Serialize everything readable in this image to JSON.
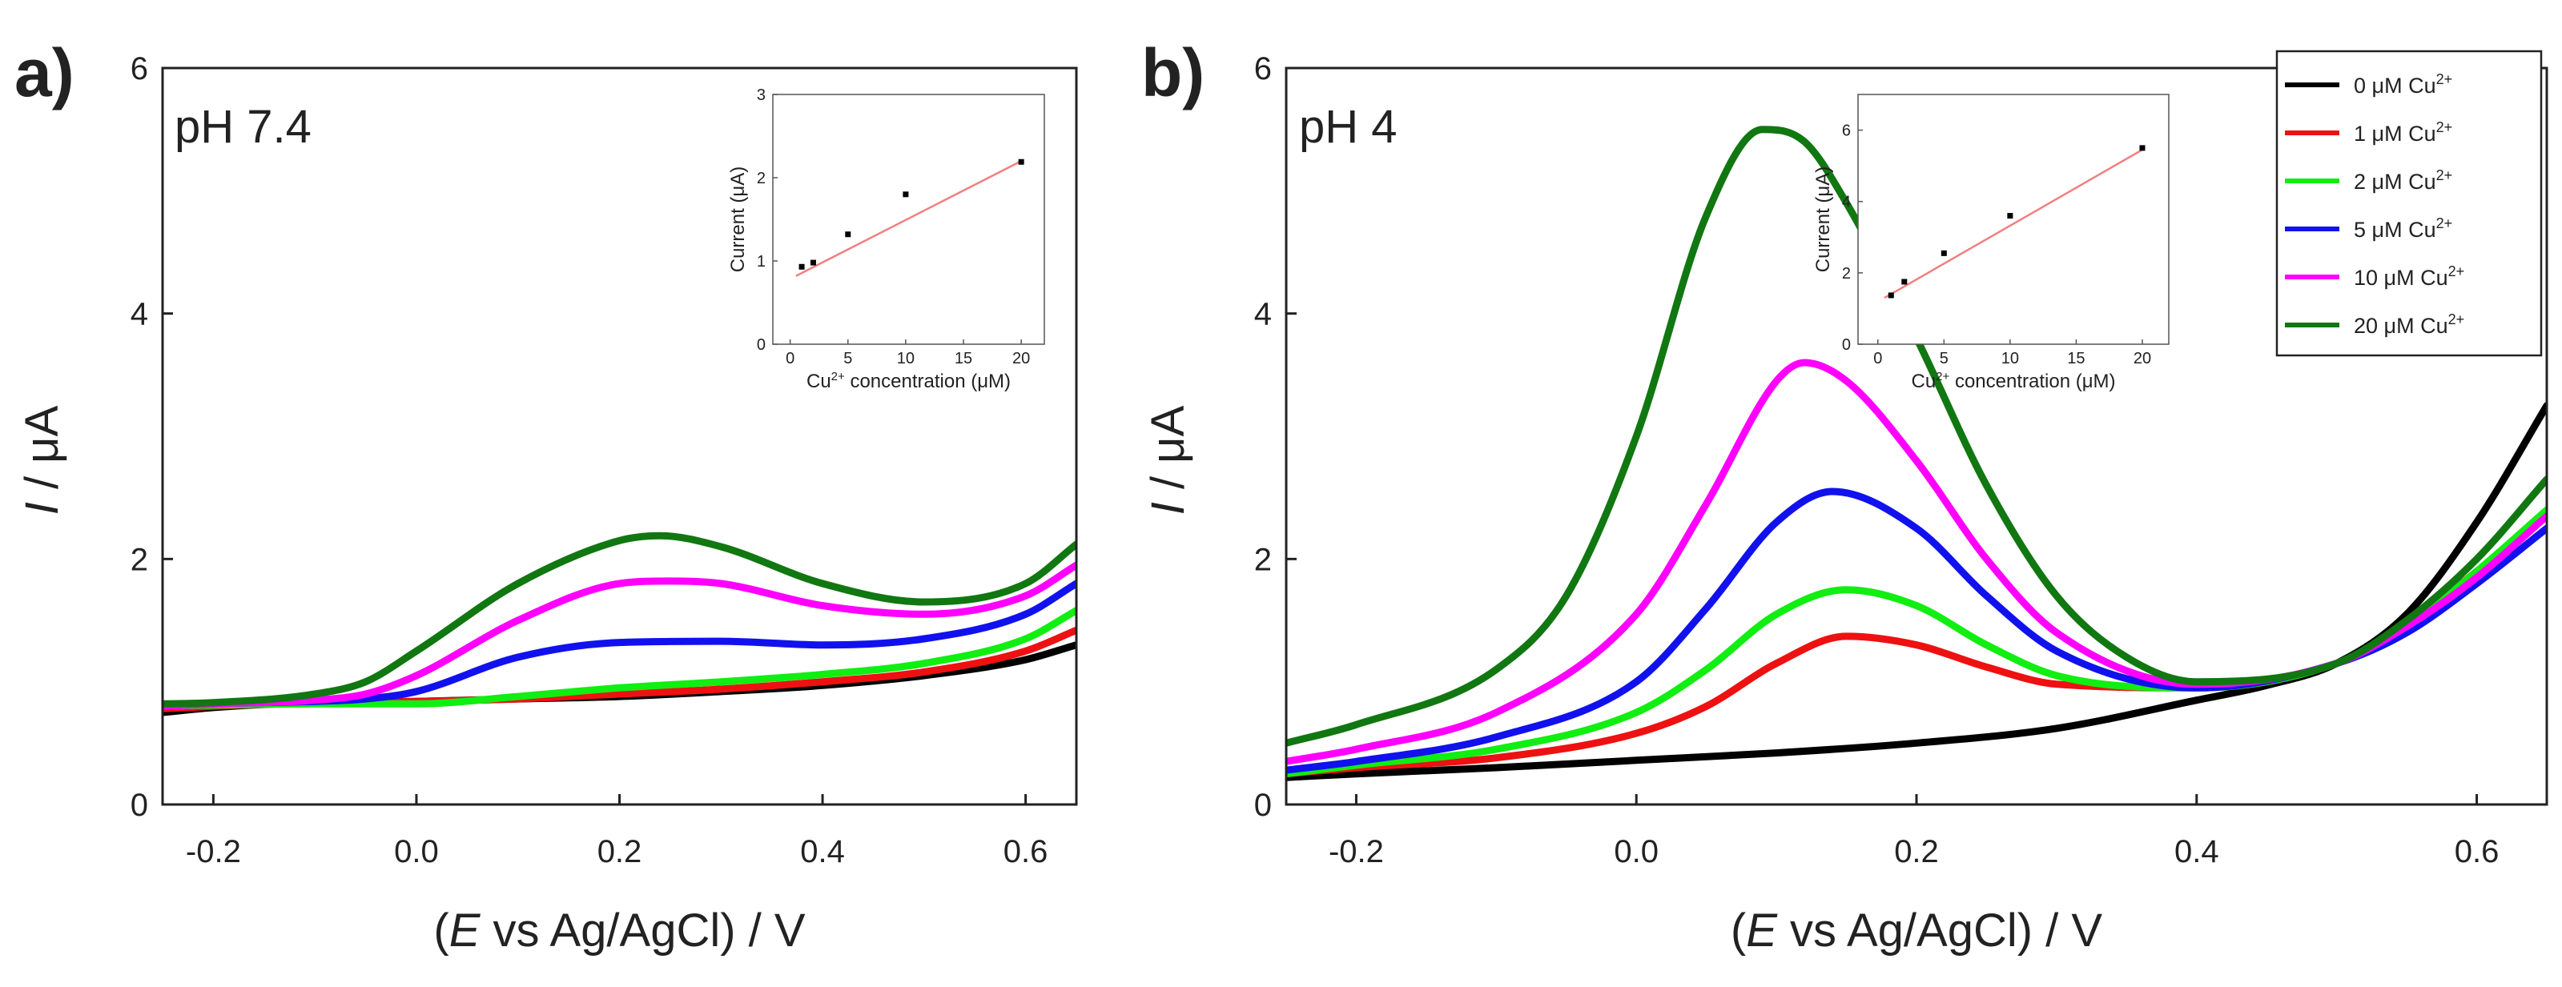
{
  "legend": {
    "items": [
      {
        "label": "0 μM Cu",
        "sup": "2+",
        "color": "#000000"
      },
      {
        "label": "1 μM Cu",
        "sup": "2+",
        "color": "#ee1111"
      },
      {
        "label": "2 μM Cu",
        "sup": "2+",
        "color": "#11ee11"
      },
      {
        "label": "5 μM Cu",
        "sup": "2+",
        "color": "#1111ee"
      },
      {
        "label": "10 μM Cu",
        "sup": "2+",
        "color": "#ff00ff"
      },
      {
        "label": "20 μM Cu",
        "sup": "2+",
        "color": "#117711"
      }
    ]
  },
  "chart_data": [
    {
      "id": "a",
      "panel_label": "a)",
      "type": "line",
      "condition": "pH 7.4",
      "xlabel": {
        "pre": "(",
        "italic": "E",
        "post": " vs Ag/AgCl) / V"
      },
      "ylabel": {
        "italic": "I",
        "post": " / μA"
      },
      "xlim": [
        -0.25,
        0.65
      ],
      "ylim": [
        0,
        6
      ],
      "xticks": [
        -0.2,
        0.0,
        0.2,
        0.4,
        0.6
      ],
      "xtick_labels": [
        "-0.2",
        "0.0",
        "0.2",
        "0.4",
        "0.6"
      ],
      "yticks": [
        0,
        2,
        4,
        6
      ],
      "ytick_labels": [
        "0",
        "2",
        "4",
        "6"
      ],
      "series": [
        {
          "name": "0 μM Cu2+",
          "color": "#000000",
          "x": [
            -0.25,
            -0.2,
            -0.1,
            0.0,
            0.1,
            0.2,
            0.3,
            0.4,
            0.5,
            0.6,
            0.65
          ],
          "y": [
            0.75,
            0.79,
            0.83,
            0.84,
            0.86,
            0.88,
            0.92,
            0.97,
            1.05,
            1.18,
            1.3
          ]
        },
        {
          "name": "1 μM Cu2+",
          "color": "#ee1111",
          "x": [
            -0.25,
            -0.2,
            -0.1,
            0.0,
            0.1,
            0.2,
            0.3,
            0.4,
            0.5,
            0.6,
            0.65
          ],
          "y": [
            0.78,
            0.8,
            0.83,
            0.84,
            0.86,
            0.9,
            0.94,
            1.0,
            1.08,
            1.25,
            1.42
          ]
        },
        {
          "name": "2 μM Cu2+",
          "color": "#11ee11",
          "x": [
            -0.25,
            -0.2,
            -0.1,
            0.0,
            0.1,
            0.2,
            0.3,
            0.4,
            0.5,
            0.6,
            0.65
          ],
          "y": [
            0.8,
            0.81,
            0.82,
            0.82,
            0.88,
            0.95,
            1.0,
            1.06,
            1.15,
            1.35,
            1.58
          ]
        },
        {
          "name": "5 μM Cu2+",
          "color": "#1111ee",
          "x": [
            -0.25,
            -0.2,
            -0.1,
            -0.05,
            0.0,
            0.1,
            0.2,
            0.3,
            0.4,
            0.5,
            0.6,
            0.65
          ],
          "y": [
            0.8,
            0.82,
            0.84,
            0.86,
            0.92,
            1.2,
            1.32,
            1.33,
            1.3,
            1.35,
            1.55,
            1.8
          ]
        },
        {
          "name": "10 μM Cu2+",
          "color": "#ff00ff",
          "x": [
            -0.25,
            -0.2,
            -0.1,
            -0.05,
            0.0,
            0.1,
            0.2,
            0.25,
            0.3,
            0.4,
            0.5,
            0.6,
            0.65
          ],
          "y": [
            0.8,
            0.82,
            0.85,
            0.9,
            1.05,
            1.5,
            1.8,
            1.82,
            1.8,
            1.62,
            1.55,
            1.7,
            1.95
          ]
        },
        {
          "name": "20 μM Cu2+",
          "color": "#117711",
          "x": [
            -0.25,
            -0.2,
            -0.1,
            -0.05,
            0.0,
            0.1,
            0.2,
            0.24,
            0.3,
            0.4,
            0.5,
            0.6,
            0.65
          ],
          "y": [
            0.82,
            0.83,
            0.9,
            1.0,
            1.25,
            1.8,
            2.15,
            2.19,
            2.1,
            1.8,
            1.65,
            1.8,
            2.12
          ]
        }
      ],
      "inset": {
        "xlabel": {
          "pre": "Cu",
          "sup": "2+",
          "post": " concentration (μM)"
        },
        "ylabel": "Current (μA)",
        "xlim": [
          -1.5,
          22
        ],
        "ylim": [
          0,
          3
        ],
        "xticks": [
          0,
          5,
          10,
          15,
          20
        ],
        "xtick_labels": [
          "0",
          "5",
          "10",
          "15",
          "20"
        ],
        "yticks": [
          0,
          1,
          2,
          3
        ],
        "ytick_labels": [
          "0",
          "1",
          "2",
          "3"
        ],
        "points": {
          "x": [
            1,
            2,
            5,
            10,
            20
          ],
          "y": [
            0.93,
            0.98,
            1.32,
            1.8,
            2.19
          ]
        },
        "fit": {
          "x": [
            0.5,
            20
          ],
          "y": [
            0.82,
            2.2
          ],
          "color": "#f08080"
        }
      }
    },
    {
      "id": "b",
      "panel_label": "b)",
      "type": "line",
      "condition": "pH 4",
      "xlabel": {
        "pre": "(",
        "italic": "E",
        "post": " vs Ag/AgCl) / V"
      },
      "ylabel": {
        "italic": "I",
        "post": " / μA"
      },
      "xlim": [
        -0.25,
        0.65
      ],
      "ylim": [
        0,
        6
      ],
      "xticks": [
        -0.2,
        0.0,
        0.2,
        0.4,
        0.6
      ],
      "xtick_labels": [
        "-0.2",
        "0.0",
        "0.2",
        "0.4",
        "0.6"
      ],
      "yticks": [
        0,
        2,
        4,
        6
      ],
      "ytick_labels": [
        "0",
        "2",
        "4",
        "6"
      ],
      "series": [
        {
          "name": "0 μM Cu2+",
          "color": "#000000",
          "x": [
            -0.25,
            -0.2,
            -0.1,
            0.0,
            0.1,
            0.2,
            0.3,
            0.4,
            0.45,
            0.5,
            0.55,
            0.6,
            0.65
          ],
          "y": [
            0.22,
            0.25,
            0.3,
            0.36,
            0.42,
            0.5,
            0.62,
            0.85,
            0.97,
            1.15,
            1.55,
            2.3,
            3.25
          ]
        },
        {
          "name": "1 μM Cu2+",
          "color": "#ee1111",
          "x": [
            -0.25,
            -0.2,
            -0.1,
            0.0,
            0.05,
            0.1,
            0.15,
            0.2,
            0.25,
            0.3,
            0.4,
            0.5,
            0.55,
            0.6,
            0.65
          ],
          "y": [
            0.25,
            0.3,
            0.38,
            0.58,
            0.8,
            1.15,
            1.37,
            1.3,
            1.12,
            0.98,
            0.95,
            1.15,
            1.45,
            1.9,
            2.35
          ]
        },
        {
          "name": "2 μM Cu2+",
          "color": "#11ee11",
          "x": [
            -0.25,
            -0.2,
            -0.1,
            0.0,
            0.05,
            0.1,
            0.15,
            0.2,
            0.25,
            0.3,
            0.4,
            0.5,
            0.55,
            0.6,
            0.65
          ],
          "y": [
            0.25,
            0.32,
            0.45,
            0.75,
            1.1,
            1.55,
            1.75,
            1.62,
            1.3,
            1.05,
            0.95,
            1.15,
            1.45,
            1.9,
            2.4
          ]
        },
        {
          "name": "5 μM Cu2+",
          "color": "#1111ee",
          "x": [
            -0.25,
            -0.2,
            -0.1,
            0.0,
            0.05,
            0.1,
            0.14,
            0.2,
            0.25,
            0.3,
            0.4,
            0.5,
            0.55,
            0.6,
            0.65
          ],
          "y": [
            0.28,
            0.35,
            0.55,
            1.0,
            1.6,
            2.3,
            2.55,
            2.25,
            1.7,
            1.25,
            0.95,
            1.15,
            1.4,
            1.8,
            2.25
          ]
        },
        {
          "name": "10 μM Cu2+",
          "color": "#ff00ff",
          "x": [
            -0.25,
            -0.2,
            -0.1,
            0.0,
            0.05,
            0.1,
            0.12,
            0.15,
            0.2,
            0.25,
            0.3,
            0.4,
            0.5,
            0.55,
            0.6,
            0.65
          ],
          "y": [
            0.35,
            0.45,
            0.75,
            1.55,
            2.45,
            3.45,
            3.6,
            3.45,
            2.8,
            2.0,
            1.4,
            0.98,
            1.15,
            1.45,
            1.85,
            2.35
          ]
        },
        {
          "name": "20 μM Cu2+",
          "color": "#117711",
          "x": [
            -0.25,
            -0.2,
            -0.1,
            -0.05,
            0.0,
            0.05,
            0.09,
            0.12,
            0.15,
            0.2,
            0.25,
            0.3,
            0.35,
            0.4,
            0.5,
            0.55,
            0.6,
            0.65
          ],
          "y": [
            0.5,
            0.65,
            1.1,
            1.7,
            3.0,
            4.8,
            5.5,
            5.4,
            4.9,
            3.8,
            2.6,
            1.7,
            1.2,
            1.0,
            1.15,
            1.5,
            2.0,
            2.65
          ]
        }
      ],
      "inset": {
        "xlabel": {
          "pre": "Cu",
          "sup": "2+",
          "post": " concentration (μM)"
        },
        "ylabel": "Current (μA)",
        "xlim": [
          -1.5,
          22
        ],
        "ylim": [
          0,
          7
        ],
        "xticks": [
          0,
          5,
          10,
          15,
          20
        ],
        "xtick_labels": [
          "0",
          "5",
          "10",
          "15",
          "20"
        ],
        "yticks": [
          0,
          2,
          4,
          6
        ],
        "ytick_labels": [
          "0",
          "2",
          "4",
          "6"
        ],
        "points": {
          "x": [
            1,
            2,
            5,
            10,
            20
          ],
          "y": [
            1.37,
            1.75,
            2.55,
            3.6,
            5.5
          ]
        },
        "fit": {
          "x": [
            0.5,
            20
          ],
          "y": [
            1.3,
            5.45
          ],
          "color": "#f08080"
        }
      }
    }
  ]
}
